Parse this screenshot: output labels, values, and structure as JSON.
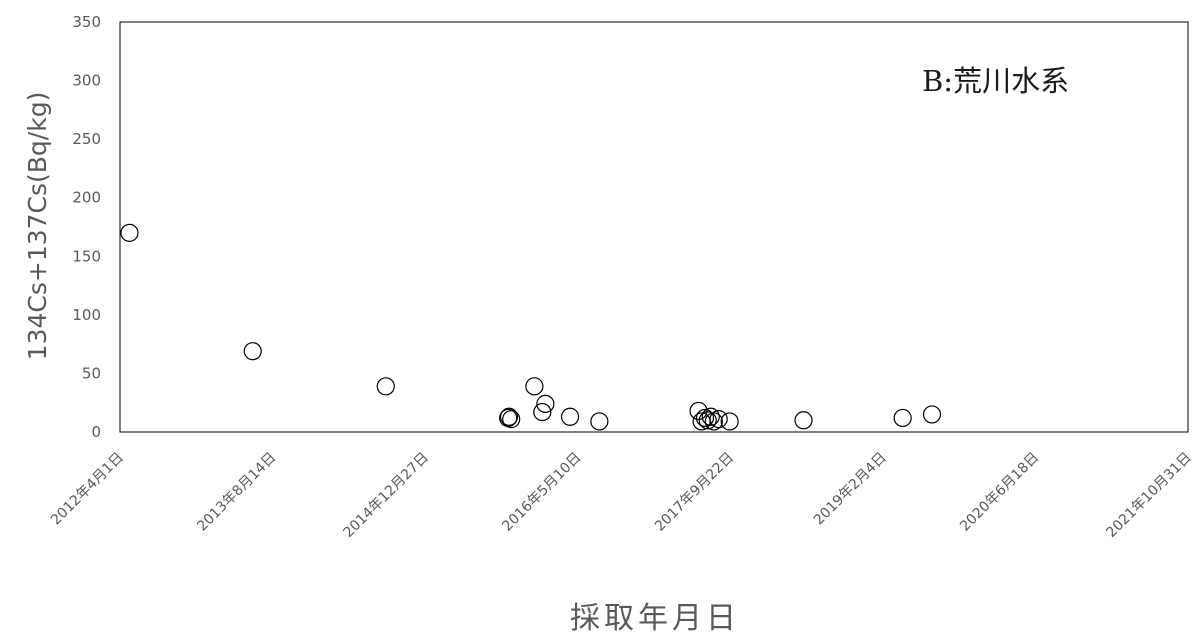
{
  "chart_data": {
    "type": "scatter",
    "title": "",
    "xlabel": "採取年月日",
    "ylabel": "134Cs+137Cs(Bq/kg)",
    "annotation": "B:荒川水系",
    "x_axis": {
      "type": "date",
      "range": [
        "2012-04-01",
        "2021-10-31"
      ],
      "tick_values": [
        "2012-04-01",
        "2013-08-14",
        "2014-12-27",
        "2016-05-10",
        "2017-09-22",
        "2019-02-04",
        "2020-06-18",
        "2021-10-31"
      ],
      "tick_labels": [
        "2012年4月1日",
        "2013年8月14日",
        "2014年12月27日",
        "2016年5月10日",
        "2017年9月22日",
        "2019年2月4日",
        "2020年6月18日",
        "2021年10月31日"
      ]
    },
    "y_axis": {
      "range": [
        0,
        350
      ],
      "tick_values": [
        0,
        50,
        100,
        150,
        200,
        250,
        300,
        350
      ],
      "tick_labels": [
        "0",
        "50",
        "100",
        "150",
        "200",
        "250",
        "300",
        "350"
      ]
    },
    "grid": false,
    "legend": "none",
    "marker": "open-circle",
    "marker_color": "#000000",
    "points": [
      {
        "x": "2012-05-02",
        "y": 170
      },
      {
        "x": "2013-06-10",
        "y": 69
      },
      {
        "x": "2014-08-20",
        "y": 39
      },
      {
        "x": "2015-09-25",
        "y": 12
      },
      {
        "x": "2015-09-28",
        "y": 13
      },
      {
        "x": "2015-10-05",
        "y": 11
      },
      {
        "x": "2015-12-20",
        "y": 39
      },
      {
        "x": "2016-01-15",
        "y": 17
      },
      {
        "x": "2016-01-25",
        "y": 24
      },
      {
        "x": "2016-04-15",
        "y": 13
      },
      {
        "x": "2016-07-20",
        "y": 9
      },
      {
        "x": "2017-06-10",
        "y": 18
      },
      {
        "x": "2017-06-20",
        "y": 9
      },
      {
        "x": "2017-07-01",
        "y": 12
      },
      {
        "x": "2017-07-10",
        "y": 10
      },
      {
        "x": "2017-07-20",
        "y": 13
      },
      {
        "x": "2017-07-30",
        "y": 9
      },
      {
        "x": "2017-08-15",
        "y": 11
      },
      {
        "x": "2017-09-20",
        "y": 9
      },
      {
        "x": "2018-05-20",
        "y": 10
      },
      {
        "x": "2019-04-10",
        "y": 12
      },
      {
        "x": "2019-07-15",
        "y": 15
      }
    ]
  }
}
